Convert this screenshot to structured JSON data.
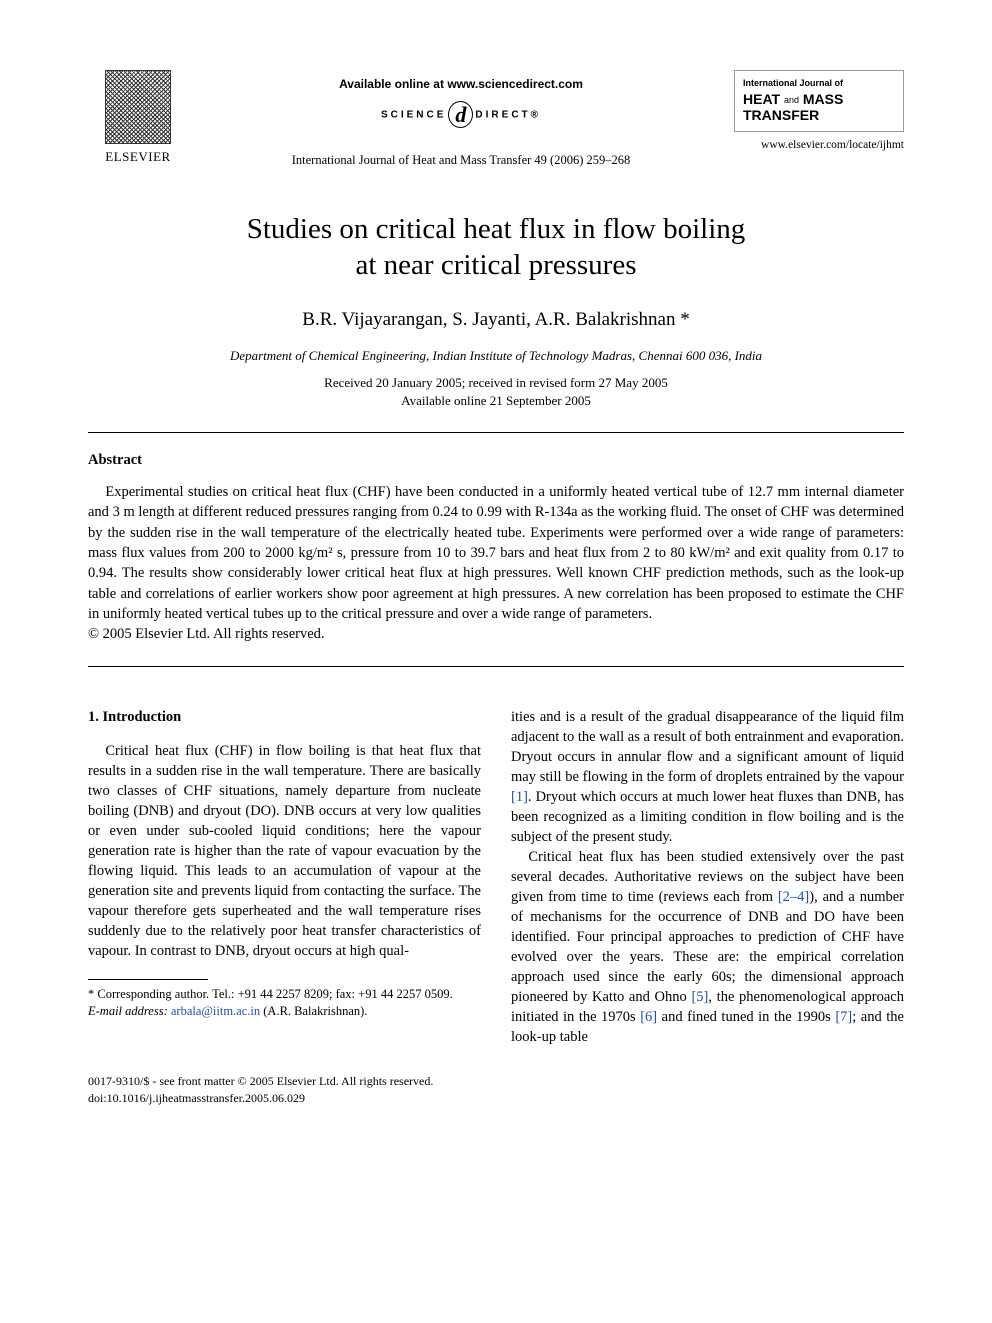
{
  "header": {
    "publisher_logo_label": "ELSEVIER",
    "available_online": "Available online at www.sciencedirect.com",
    "scidirect_prefix": "SCIENCE",
    "scidirect_d": "d",
    "scidirect_suffix": "DIRECT®",
    "journal_citation": "International Journal of Heat and Mass Transfer 49 (2006) 259–268",
    "badge_small": "International Journal of",
    "badge_line1": "HEAT",
    "badge_and": "and",
    "badge_line1b": "MASS",
    "badge_line2": "TRANSFER",
    "journal_url": "www.elsevier.com/locate/ijhmt"
  },
  "title_line1": "Studies on critical heat flux in flow boiling",
  "title_line2": "at near critical pressures",
  "authors": "B.R. Vijayarangan, S. Jayanti, A.R. Balakrishnan *",
  "affiliation": "Department of Chemical Engineering, Indian Institute of Technology Madras, Chennai 600 036, India",
  "dates_line1": "Received 20 January 2005; received in revised form 27 May 2005",
  "dates_line2": "Available online 21 September 2005",
  "abstract": {
    "heading": "Abstract",
    "body": "Experimental studies on critical heat flux (CHF) have been conducted in a uniformly heated vertical tube of 12.7 mm internal diameter and 3 m length at different reduced pressures ranging from 0.24 to 0.99 with R-134a as the working fluid. The onset of CHF was determined by the sudden rise in the wall temperature of the electrically heated tube. Experiments were performed over a wide range of parameters: mass flux values from 200 to 2000 kg/m² s, pressure from 10 to 39.7 bars and heat flux from 2 to 80 kW/m² and exit quality from 0.17 to 0.94. The results show considerably lower critical heat flux at high pressures. Well known CHF prediction methods, such as the look-up table and correlations of earlier workers show poor agreement at high pressures. A new correlation has been proposed to estimate the CHF in uniformly heated vertical tubes up to the critical pressure and over a wide range of parameters.",
    "copyright": "© 2005 Elsevier Ltd. All rights reserved."
  },
  "section1": {
    "heading": "1. Introduction",
    "col1_p1": "Critical heat flux (CHF) in flow boiling is that heat flux that results in a sudden rise in the wall temperature. There are basically two classes of CHF situations, namely departure from nucleate boiling (DNB) and dryout (DO). DNB occurs at very low qualities or even under sub-cooled liquid conditions; here the vapour generation rate is higher than the rate of vapour evacuation by the flowing liquid. This leads to an accumulation of vapour at the generation site and prevents liquid from contacting the surface. The vapour therefore gets superheated and the wall temperature rises suddenly due to the relatively poor heat transfer characteristics of vapour. In contrast to DNB, dryout occurs at high qual-",
    "col2_p1a": "ities and is a result of the gradual disappearance of the liquid film adjacent to the wall as a result of both entrainment and evaporation. Dryout occurs in annular flow and a significant amount of liquid may still be flowing in the form of droplets entrained by the vapour ",
    "ref1": "[1]",
    "col2_p1b": ". Dryout which occurs at much lower heat fluxes than DNB, has been recognized as a limiting condition in flow boiling and is the subject of the present study.",
    "col2_p2a": "Critical heat flux has been studied extensively over the past several decades. Authoritative reviews on the subject have been given from time to time (reviews each from ",
    "ref24": "[2–4]",
    "col2_p2b": "), and a number of mechanisms for the occurrence of DNB and DO have been identified. Four principal approaches to prediction of CHF have evolved over the years. These are: the empirical correlation approach used since the early 60s; the dimensional approach pioneered by Katto and Ohno ",
    "ref5": "[5]",
    "col2_p2c": ", the phenomenological approach initiated in the 1970s ",
    "ref6": "[6]",
    "col2_p2d": " and fined tuned in the 1990s ",
    "ref7": "[7]",
    "col2_p2e": "; and the look-up table"
  },
  "footnote": {
    "corr": "* Corresponding author. Tel.: +91 44 2257 8209; fax: +91 44 2257 0509.",
    "email_label": "E-mail address:",
    "email": "arbala@iitm.ac.in",
    "email_tail": "(A.R. Balakrishnan)."
  },
  "footer": {
    "line1": "0017-9310/$ - see front matter © 2005 Elsevier Ltd. All rights reserved.",
    "line2": "doi:10.1016/j.ijheatmasstransfer.2005.06.029"
  },
  "colors": {
    "link": "#1a4fb5",
    "text": "#000000",
    "background": "#ffffff"
  }
}
